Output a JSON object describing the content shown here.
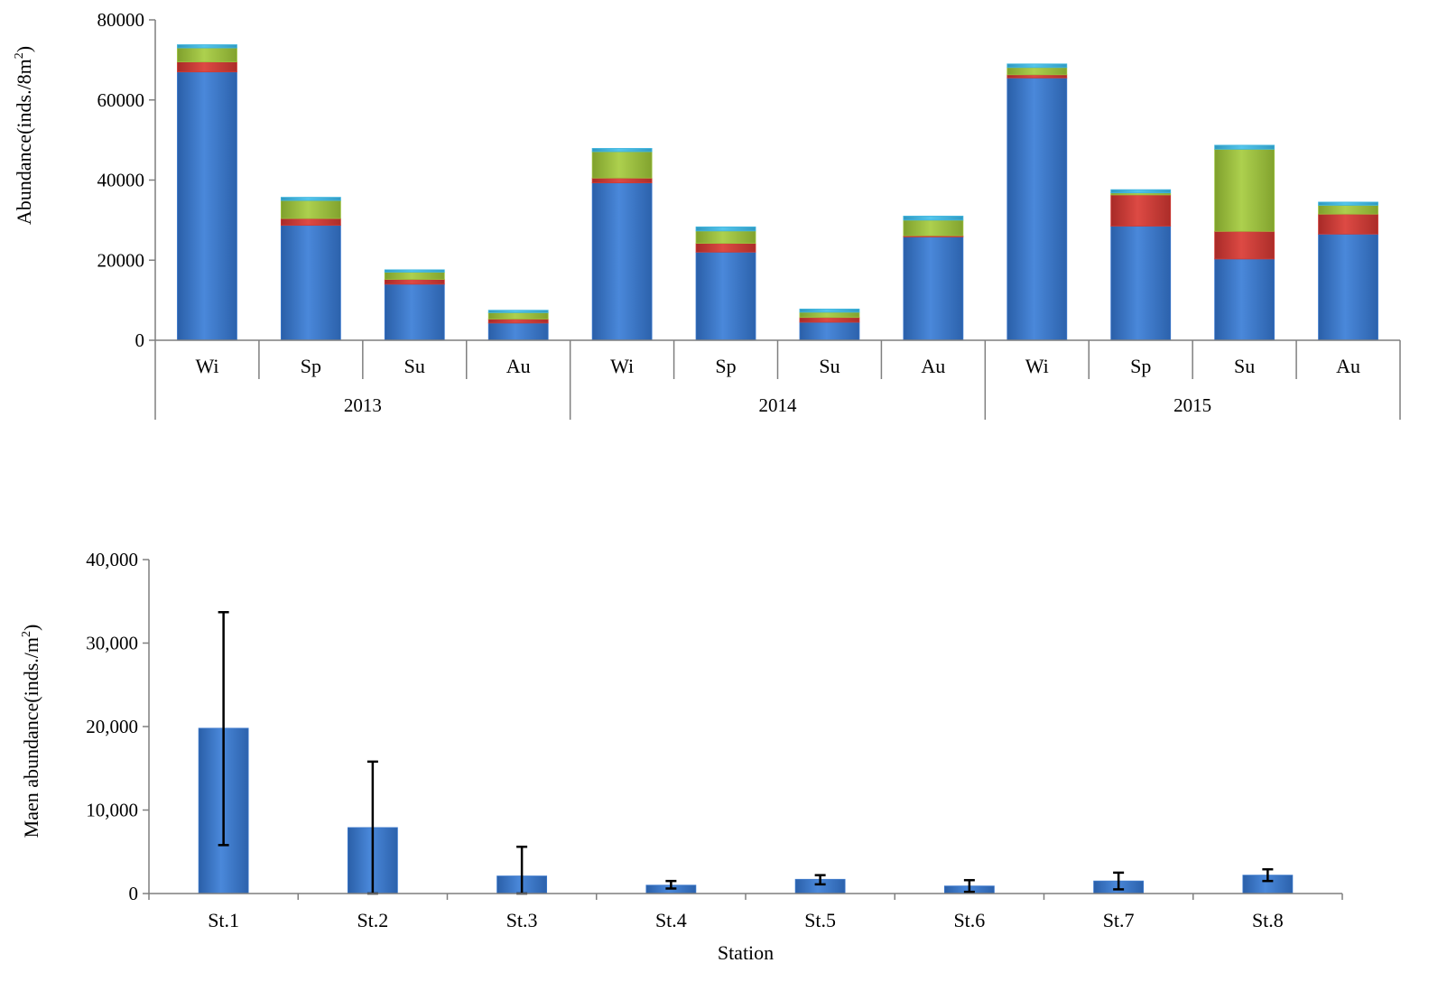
{
  "colors": {
    "blue": "#3B78CC",
    "red": "#CE3B36",
    "green": "#9CC23E",
    "cyan": "#40B6DF",
    "axis": "#7F7F7F",
    "errorbar": "#000000"
  },
  "chart_data": [
    {
      "type": "bar",
      "stacked": true,
      "ylabel_main": "Abundance(inds./8m",
      "ylabel_sup": "2",
      "ylabel_tail": ")",
      "ylim": [
        0,
        80000
      ],
      "yticks": [
        "0",
        "20000",
        "40000",
        "60000",
        "80000"
      ],
      "ytick_values": [
        0,
        20000,
        40000,
        60000,
        80000
      ],
      "categories": [
        "Wi",
        "Sp",
        "Su",
        "Au",
        "Wi",
        "Sp",
        "Su",
        "Au",
        "Wi",
        "Sp",
        "Su",
        "Au"
      ],
      "groups": [
        "2013",
        "2014",
        "2015"
      ],
      "group_size": 4,
      "grid": false,
      "legend": "none",
      "series": [
        {
          "color": "blue",
          "values": [
            67000,
            28700,
            14000,
            4300,
            39300,
            22000,
            4500,
            25800,
            65500,
            28500,
            20300,
            26500
          ]
        },
        {
          "color": "red",
          "values": [
            2500,
            1700,
            1200,
            1000,
            1200,
            2200,
            1200,
            300,
            800,
            7800,
            6900,
            5000
          ]
        },
        {
          "color": "green",
          "values": [
            3500,
            4500,
            1800,
            1600,
            6600,
            3100,
            1300,
            3900,
            1800,
            500,
            20500,
            2200
          ]
        },
        {
          "color": "cyan",
          "values": [
            800,
            800,
            600,
            600,
            800,
            1000,
            800,
            1000,
            900,
            800,
            1000,
            800
          ]
        }
      ]
    },
    {
      "type": "bar",
      "xlabel": "Station",
      "ylabel_main": "Maen abundance(inds./m",
      "ylabel_sup": "2",
      "ylabel_tail": ")",
      "ylim": [
        0,
        40000
      ],
      "yticks": [
        "0",
        "10,000",
        "20,000",
        "30,000",
        "40,000"
      ],
      "ytick_values": [
        0,
        10000,
        20000,
        30000,
        40000
      ],
      "categories": [
        "St.1",
        "St.2",
        "St.3",
        "St.4",
        "St.5",
        "St.6",
        "St.7",
        "St.8"
      ],
      "grid": false,
      "legend": "none",
      "values": [
        19800,
        7900,
        2100,
        1000,
        1700,
        900,
        1500,
        2200
      ],
      "error_low": [
        5800,
        0,
        0,
        600,
        1100,
        200,
        500,
        1500
      ],
      "error_high": [
        33700,
        15800,
        5600,
        1500,
        2200,
        1600,
        2500,
        2900
      ]
    }
  ]
}
